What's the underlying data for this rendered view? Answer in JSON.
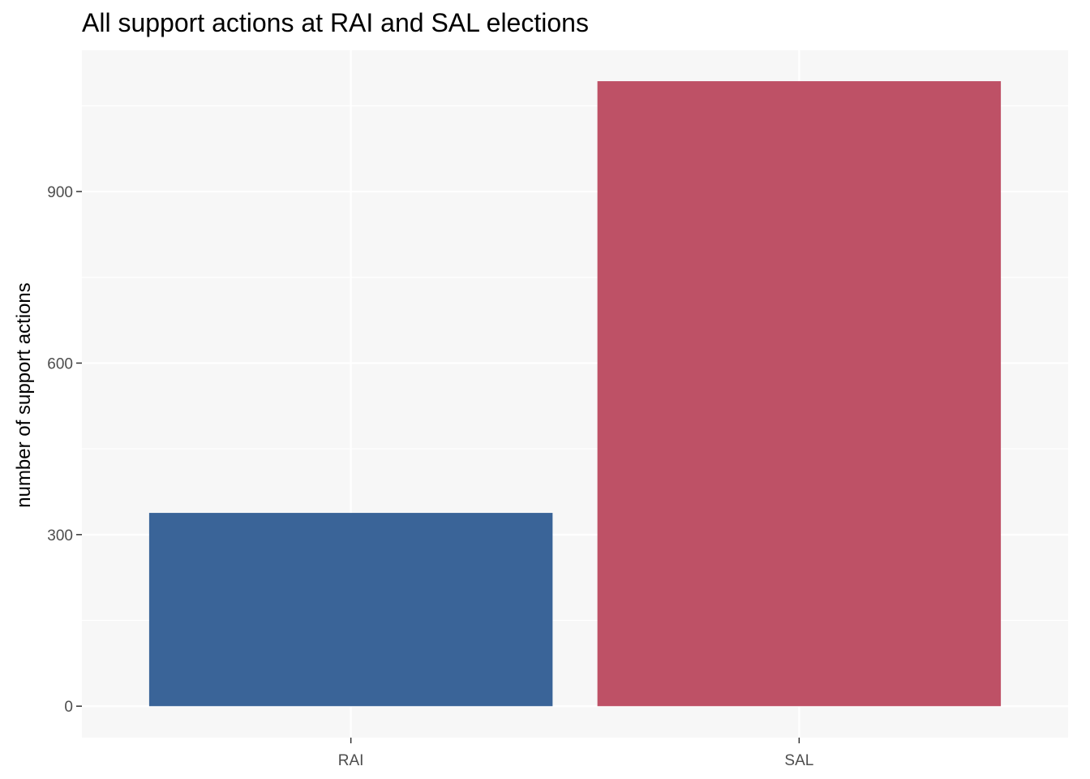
{
  "chart_data": {
    "type": "bar",
    "title": "All support actions at RAI and SAL elections",
    "xlabel": "",
    "ylabel": "number of support actions",
    "categories": [
      "RAI",
      "SAL"
    ],
    "values": [
      338,
      1093
    ],
    "colors": [
      "#3A6498",
      "#BE5166"
    ],
    "ylim": [
      -55,
      1147
    ],
    "yticks": [
      0,
      300,
      600,
      900
    ],
    "ytick_labels": [
      "0",
      "300",
      "600",
      "900"
    ],
    "grid": true,
    "legend": "none",
    "panel_background": "#F7F7F7",
    "grid_color": "#FFFFFF"
  }
}
